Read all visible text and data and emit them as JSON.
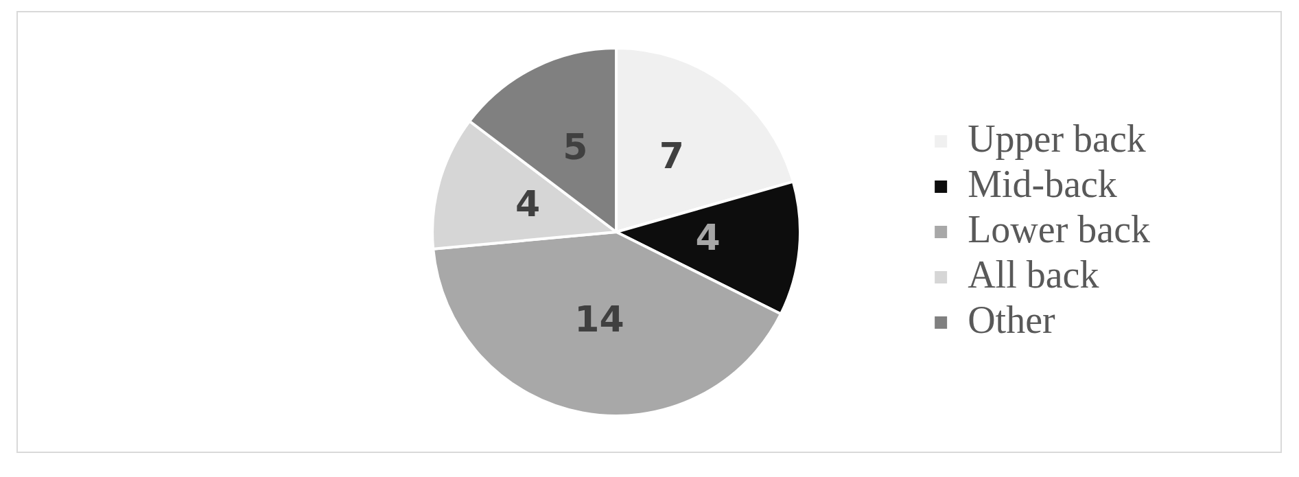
{
  "chart_data": {
    "type": "pie",
    "categories": [
      "Upper back",
      "Mid-back",
      "Lower back",
      "All back",
      "Other"
    ],
    "values": [
      7,
      4,
      14,
      4,
      5
    ],
    "colors": [
      "#f0f0f0",
      "#0d0d0d",
      "#a8a8a8",
      "#d6d6d6",
      "#808080"
    ],
    "data_labels": true,
    "legend": "right"
  }
}
